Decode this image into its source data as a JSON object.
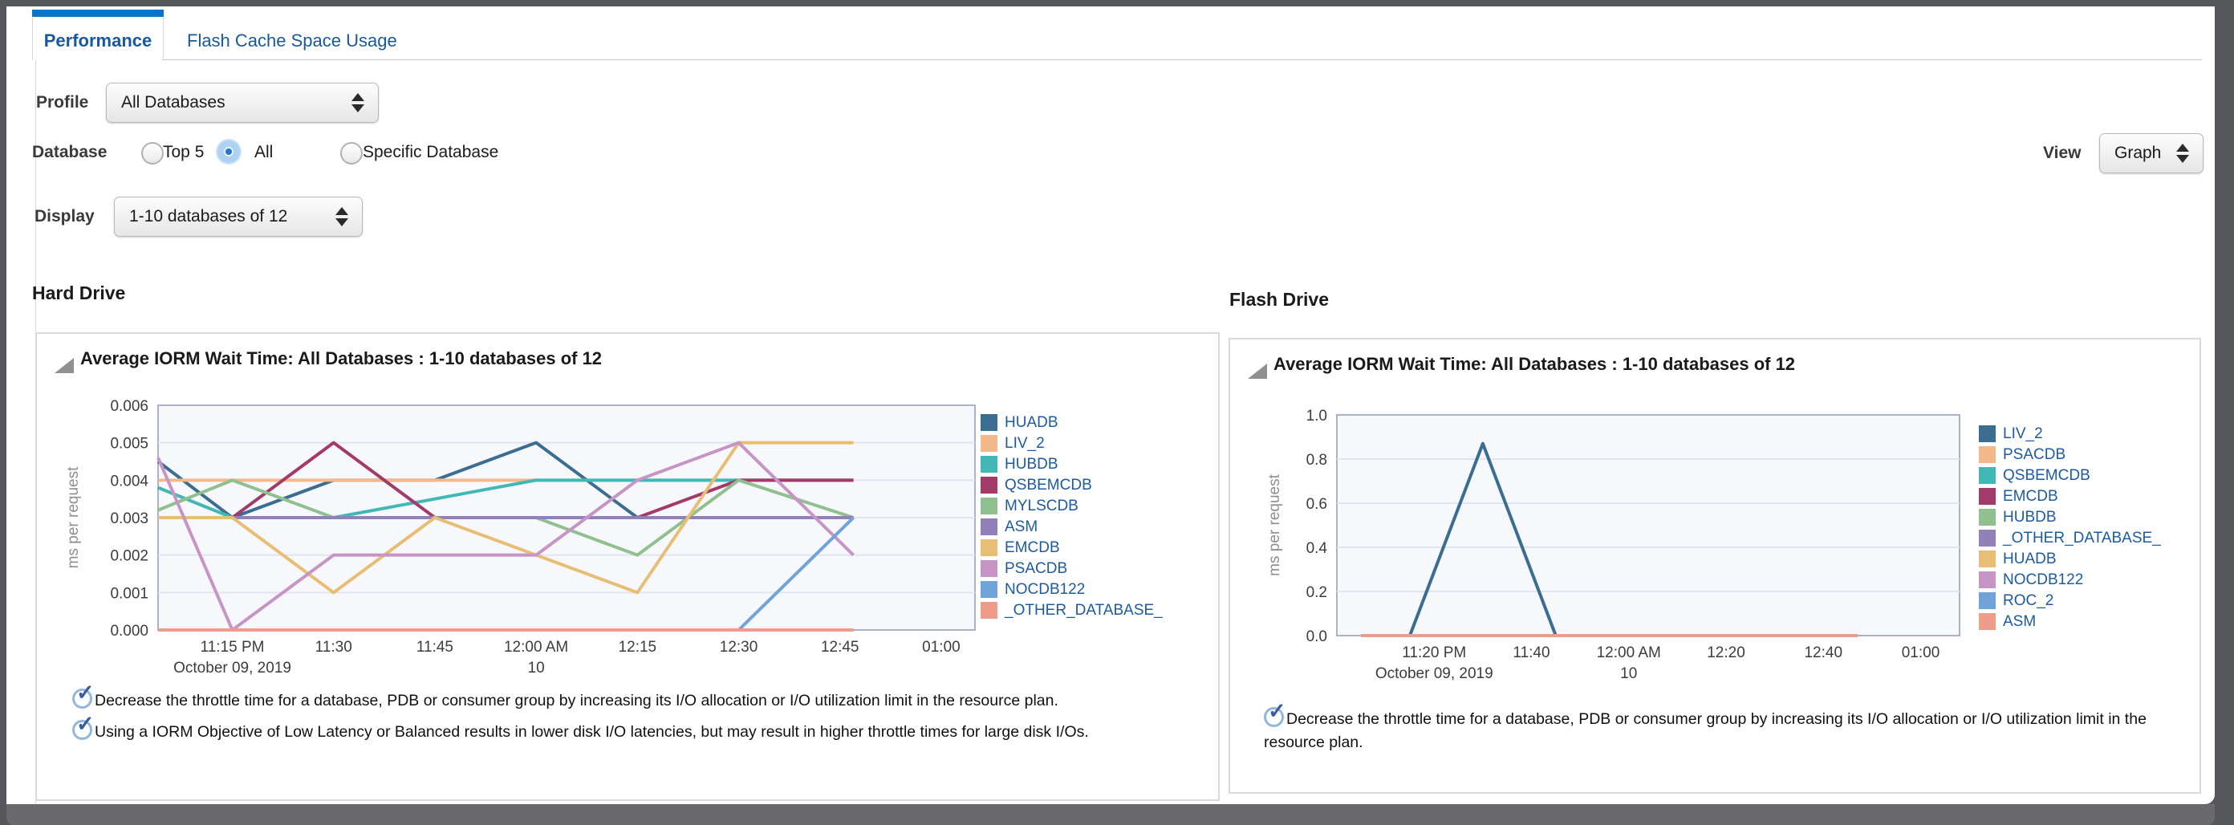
{
  "tabs": [
    {
      "label": "Performance",
      "active": true
    },
    {
      "label": "Flash Cache Space Usage",
      "active": false
    }
  ],
  "filters": {
    "profile_label": "Profile",
    "profile_value": "All Databases",
    "database_label": "Database",
    "radios": [
      {
        "label": "Top 5",
        "selected": false
      },
      {
        "label": "All",
        "selected": true
      },
      {
        "label": "Specific Database",
        "selected": false
      }
    ],
    "display_label": "Display",
    "display_value": "1-10 databases of 12",
    "view_label": "View",
    "view_value": "Graph"
  },
  "sections": {
    "hard": {
      "header": "Hard Drive",
      "title": "Average IORM Wait Time: All Databases : 1-10 databases of 12",
      "notes": [
        "Decrease the throttle time for a database, PDB or consumer group by increasing its I/O allocation or I/O utilization limit in the resource plan.",
        "Using a IORM Objective of Low Latency or Balanced results in lower disk I/O latencies, but may result in higher throttle times for large disk I/Os."
      ]
    },
    "flash": {
      "header": "Flash Drive",
      "title": "Average IORM Wait Time: All Databases : 1-10 databases of 12",
      "notes": [
        "Decrease the throttle time for a database, PDB or consumer group by increasing its I/O allocation or I/O utilization limit in the resource plan."
      ]
    }
  },
  "chart_data": [
    {
      "type": "line",
      "title": "Average IORM Wait Time: All Databases : 1-10 databases of 12",
      "xlabel": "",
      "ylabel": "ms per request",
      "ylim": [
        0,
        0.006
      ],
      "x_axis_dates": [
        "October 09, 2019",
        "October 10, 2019"
      ],
      "yticks": [
        {
          "v": 0,
          "label": "0.000"
        },
        {
          "v": 0.001,
          "label": "0.001"
        },
        {
          "v": 0.002,
          "label": "0.002"
        },
        {
          "v": 0.003,
          "label": "0.003"
        },
        {
          "v": 0.004,
          "label": "0.004"
        },
        {
          "v": 0.005,
          "label": "0.005"
        },
        {
          "v": 0.006,
          "label": "0.006"
        }
      ],
      "xticks": [
        {
          "t": 1395,
          "label": "11:15 PM",
          "sub": "October 09, 2019"
        },
        {
          "t": 1410,
          "label": "11:30"
        },
        {
          "t": 1425,
          "label": "11:45"
        },
        {
          "t": 1440,
          "label": "12:00 AM",
          "sub": "10"
        },
        {
          "t": 1455,
          "label": "12:15"
        },
        {
          "t": 1470,
          "label": "12:30"
        },
        {
          "t": 1485,
          "label": "12:45"
        },
        {
          "t": 1500,
          "label": "01:00"
        }
      ],
      "series": [
        {
          "name": "HUADB",
          "color": "#3A6D90",
          "points": [
            [
              1384,
              0.0045
            ],
            [
              1395,
              0.003
            ],
            [
              1410,
              0.004
            ],
            [
              1425,
              0.004
            ],
            [
              1440,
              0.005
            ],
            [
              1455,
              0.003
            ],
            [
              1470,
              0.003
            ],
            [
              1487,
              0.003
            ]
          ]
        },
        {
          "name": "LIV_2",
          "color": "#F2BA8B",
          "points": [
            [
              1384,
              0.004
            ],
            [
              1395,
              0.004
            ],
            [
              1410,
              0.004
            ],
            [
              1425,
              0.004
            ],
            [
              1440,
              0.004
            ],
            [
              1455,
              0.004
            ],
            [
              1470,
              0.004
            ],
            [
              1487,
              0.004
            ]
          ]
        },
        {
          "name": "HUBDB",
          "color": "#41B7B6",
          "points": [
            [
              1384,
              0.0038
            ],
            [
              1395,
              0.003
            ],
            [
              1410,
              0.003
            ],
            [
              1425,
              0.0035
            ],
            [
              1440,
              0.004
            ],
            [
              1455,
              0.004
            ],
            [
              1470,
              0.004
            ],
            [
              1487,
              0.004
            ]
          ]
        },
        {
          "name": "QSBEMCDB",
          "color": "#A23B69",
          "points": [
            [
              1384,
              0.003
            ],
            [
              1395,
              0.003
            ],
            [
              1410,
              0.005
            ],
            [
              1425,
              0.003
            ],
            [
              1440,
              0.003
            ],
            [
              1455,
              0.003
            ],
            [
              1470,
              0.004
            ],
            [
              1487,
              0.004
            ]
          ]
        },
        {
          "name": "MYLSCDB",
          "color": "#90C08F",
          "points": [
            [
              1384,
              0.0032
            ],
            [
              1395,
              0.004
            ],
            [
              1410,
              0.003
            ],
            [
              1425,
              0.003
            ],
            [
              1440,
              0.003
            ],
            [
              1455,
              0.002
            ],
            [
              1470,
              0.004
            ],
            [
              1487,
              0.003
            ]
          ]
        },
        {
          "name": "ASM",
          "color": "#9181B8",
          "points": [
            [
              1384,
              0.003
            ],
            [
              1395,
              0.003
            ],
            [
              1410,
              0.003
            ],
            [
              1425,
              0.003
            ],
            [
              1440,
              0.003
            ],
            [
              1455,
              0.003
            ],
            [
              1470,
              0.003
            ],
            [
              1487,
              0.003
            ]
          ]
        },
        {
          "name": "EMCDB",
          "color": "#E8BD74",
          "points": [
            [
              1384,
              0.003
            ],
            [
              1395,
              0.003
            ],
            [
              1410,
              0.001
            ],
            [
              1425,
              0.003
            ],
            [
              1440,
              0.002
            ],
            [
              1455,
              0.001
            ],
            [
              1470,
              0.005
            ],
            [
              1487,
              0.005
            ]
          ]
        },
        {
          "name": "PSACDB",
          "color": "#C795C5",
          "points": [
            [
              1384,
              0.0046
            ],
            [
              1395,
              0
            ],
            [
              1410,
              0.002
            ],
            [
              1425,
              0.002
            ],
            [
              1440,
              0.002
            ],
            [
              1455,
              0.004
            ],
            [
              1470,
              0.005
            ],
            [
              1487,
              0.002
            ]
          ]
        },
        {
          "name": "NOCDB122",
          "color": "#70A3DA",
          "points": [
            [
              1384,
              0
            ],
            [
              1395,
              0
            ],
            [
              1410,
              0
            ],
            [
              1425,
              0
            ],
            [
              1440,
              0
            ],
            [
              1455,
              0
            ],
            [
              1470,
              0
            ],
            [
              1487,
              0.003
            ]
          ]
        },
        {
          "name": "_OTHER_DATABASE_",
          "color": "#EE9C8C",
          "points": [
            [
              1384,
              0
            ],
            [
              1395,
              0
            ],
            [
              1410,
              0
            ],
            [
              1425,
              0
            ],
            [
              1440,
              0
            ],
            [
              1455,
              0
            ],
            [
              1470,
              0
            ],
            [
              1487,
              0
            ]
          ]
        }
      ]
    },
    {
      "type": "line",
      "title": "Average IORM Wait Time: All Databases : 1-10 databases of 12",
      "xlabel": "",
      "ylabel": "ms per request",
      "ylim": [
        0,
        1.0
      ],
      "x_axis_dates": [
        "October 09, 2019",
        "October 10, 2019"
      ],
      "yticks": [
        {
          "v": 0,
          "label": "0.0"
        },
        {
          "v": 0.2,
          "label": "0.2"
        },
        {
          "v": 0.4,
          "label": "0.4"
        },
        {
          "v": 0.6,
          "label": "0.6"
        },
        {
          "v": 0.8,
          "label": "0.8"
        },
        {
          "v": 1.0,
          "label": "1.0"
        }
      ],
      "xticks": [
        {
          "t": 1400,
          "label": "11:20 PM",
          "sub": "October 09, 2019"
        },
        {
          "t": 1420,
          "label": "11:40"
        },
        {
          "t": 1440,
          "label": "12:00 AM",
          "sub": "10"
        },
        {
          "t": 1460,
          "label": "12:20"
        },
        {
          "t": 1480,
          "label": "12:40"
        },
        {
          "t": 1500,
          "label": "01:00"
        }
      ],
      "series": [
        {
          "name": "LIV_2",
          "color": "#3A6D90",
          "points": [
            [
              1395,
              0
            ],
            [
              1410,
              0.87
            ],
            [
              1425,
              0
            ]
          ]
        },
        {
          "name": "PSACDB",
          "color": "#F2BA8B",
          "points": [
            [
              1385,
              0
            ],
            [
              1487,
              0
            ]
          ]
        },
        {
          "name": "QSBEMCDB",
          "color": "#41B7B6",
          "points": [
            [
              1385,
              0
            ],
            [
              1487,
              0
            ]
          ]
        },
        {
          "name": "EMCDB",
          "color": "#A23B69",
          "points": [
            [
              1385,
              0
            ],
            [
              1487,
              0
            ]
          ]
        },
        {
          "name": "HUBDB",
          "color": "#90C08F",
          "points": [
            [
              1385,
              0
            ],
            [
              1487,
              0
            ]
          ]
        },
        {
          "name": "_OTHER_DATABASE_",
          "color": "#9181B8",
          "points": [
            [
              1385,
              0
            ],
            [
              1487,
              0
            ]
          ]
        },
        {
          "name": "HUADB",
          "color": "#E8BD74",
          "points": [
            [
              1385,
              0
            ],
            [
              1487,
              0
            ]
          ]
        },
        {
          "name": "NOCDB122",
          "color": "#C795C5",
          "points": [
            [
              1385,
              0
            ],
            [
              1487,
              0
            ]
          ]
        },
        {
          "name": "ROC_2",
          "color": "#70A3DA",
          "points": [
            [
              1385,
              0
            ],
            [
              1487,
              0
            ]
          ]
        },
        {
          "name": "ASM",
          "color": "#EE9C8C",
          "points": [
            [
              1385,
              0
            ],
            [
              1487,
              0
            ]
          ]
        }
      ]
    }
  ]
}
